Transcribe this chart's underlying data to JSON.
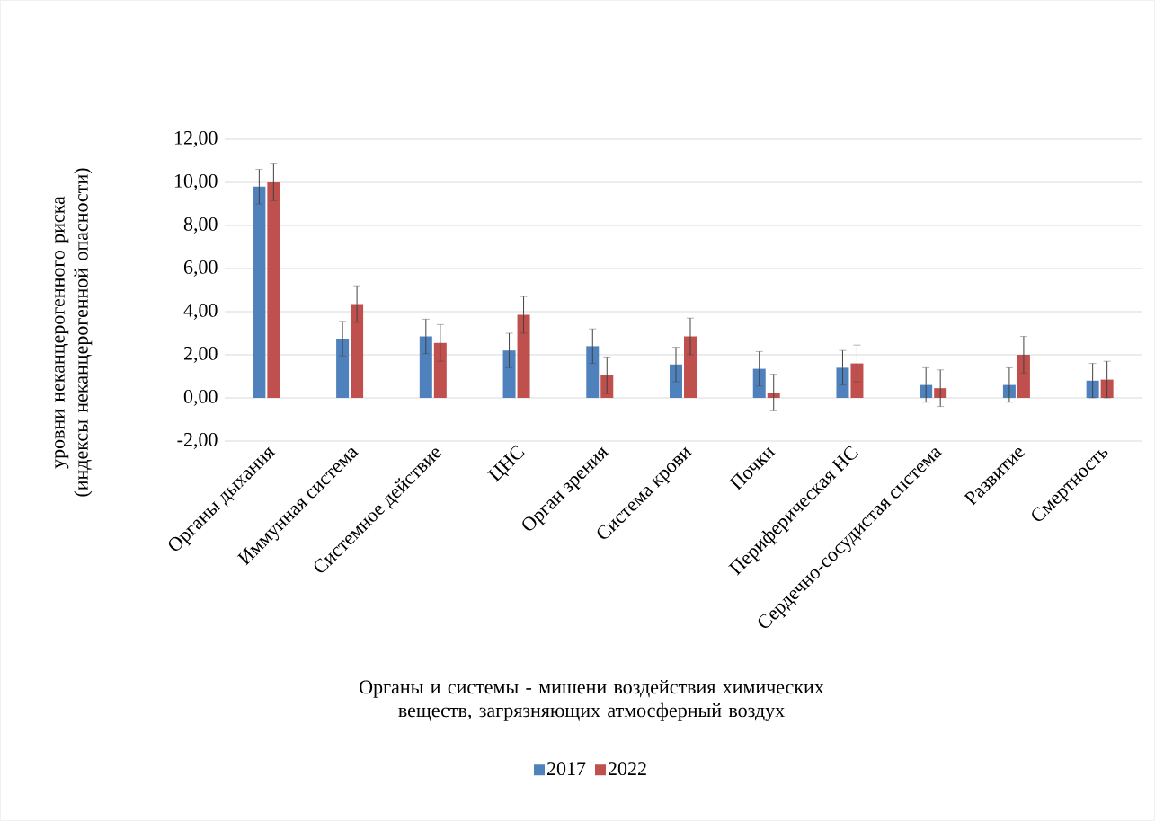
{
  "chart_data": {
    "type": "bar",
    "xlabel": "Органы и системы - мишени воздействия химических веществ, загрязняющих атмосферный воздух",
    "ylabel": "уровни неканцерогенного риска (индексы неканцерогенной опасности)",
    "categories": [
      "Органы дыхания",
      "Иммунная система",
      "Системное действие",
      "ЦНС",
      "Орган зрения",
      "Система крови",
      "Почки",
      "Периферическая НС",
      "Сердечно-сосудистая система",
      "Развитие",
      "Смертность"
    ],
    "series": [
      {
        "name": "2017",
        "color": "#4f81bd",
        "values": [
          9.8,
          2.75,
          2.85,
          2.2,
          2.4,
          1.55,
          1.35,
          1.4,
          0.6,
          0.6,
          0.8
        ],
        "errors": [
          0.8,
          0.8,
          0.8,
          0.8,
          0.8,
          0.8,
          0.8,
          0.8,
          0.8,
          0.8,
          0.8
        ]
      },
      {
        "name": "2022",
        "color": "#c0504d",
        "values": [
          10.0,
          4.35,
          2.55,
          3.85,
          1.05,
          2.85,
          0.25,
          1.6,
          0.45,
          2.0,
          0.85
        ],
        "errors": [
          0.85,
          0.85,
          0.85,
          0.85,
          0.85,
          0.85,
          0.85,
          0.85,
          0.85,
          0.85,
          0.85
        ]
      }
    ],
    "ylim": [
      -2,
      12
    ],
    "yticks": [
      {
        "value": -2,
        "label": "-2,00"
      },
      {
        "value": 0,
        "label": "0,00"
      },
      {
        "value": 2,
        "label": "2,00"
      },
      {
        "value": 4,
        "label": "4,00"
      },
      {
        "value": 6,
        "label": "6,00"
      },
      {
        "value": 8,
        "label": "8,00"
      },
      {
        "value": 10,
        "label": "10,00"
      },
      {
        "value": 12,
        "label": "12,00"
      }
    ],
    "grid": "y",
    "legend": "bottom"
  }
}
